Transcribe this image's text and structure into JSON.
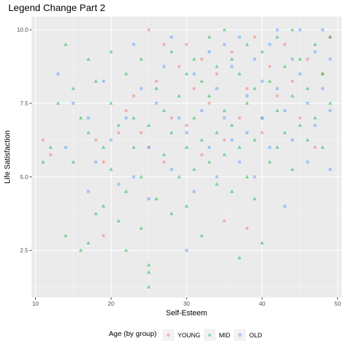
{
  "chart_data": {
    "type": "scatter",
    "title": "Legend Change Part 2",
    "xlabel": "Self-Esteem",
    "ylabel": "Life Satisfaction",
    "xlim": [
      9.5,
      50.5
    ],
    "ylim": [
      0.9,
      10.45
    ],
    "x_ticks": [
      10,
      20,
      30,
      40,
      50
    ],
    "y_ticks": [
      2.5,
      5.0,
      7.5,
      10.0
    ],
    "x_tick_labels": [
      "10",
      "20",
      "30",
      "40",
      "50"
    ],
    "y_tick_labels": [
      "2.5",
      "5.0",
      "7.5",
      "10.0"
    ],
    "grid": true,
    "legend": {
      "title": "Age (by group)",
      "position": "bottom",
      "entries": [
        "YOUNG",
        "MID",
        "OLD"
      ]
    },
    "series": [
      {
        "name": "YOUNG",
        "marker": "circle",
        "color": "#F8766D",
        "points": [
          [
            11,
            6.25
          ],
          [
            12,
            5.75
          ],
          [
            18,
            6.25
          ],
          [
            19,
            3.0
          ],
          [
            19,
            5.5
          ],
          [
            21,
            6.5
          ],
          [
            22,
            7.25
          ],
          [
            23,
            7.75
          ],
          [
            24,
            6.5
          ],
          [
            25,
            10.0
          ],
          [
            25,
            6.0
          ],
          [
            26,
            8.25
          ],
          [
            27,
            9.5
          ],
          [
            27,
            5.5
          ],
          [
            28,
            7.0
          ],
          [
            29,
            8.75
          ],
          [
            30,
            6.75
          ],
          [
            30,
            9.5
          ],
          [
            31,
            8.0
          ],
          [
            32,
            5.75
          ],
          [
            32,
            9.0
          ],
          [
            33,
            7.5
          ],
          [
            34,
            8.5
          ],
          [
            35,
            6.25
          ],
          [
            35,
            3.5
          ],
          [
            36,
            9.25
          ],
          [
            37,
            7.0
          ],
          [
            38,
            8.0
          ],
          [
            38,
            3.25
          ],
          [
            39,
            9.75
          ],
          [
            40,
            6.5
          ],
          [
            41,
            8.75
          ],
          [
            42,
            7.75
          ],
          [
            43,
            9.5
          ],
          [
            44,
            8.25
          ],
          [
            45,
            7.0
          ],
          [
            46,
            9.0
          ],
          [
            47,
            6.0
          ],
          [
            48,
            8.5
          ],
          [
            49,
            9.75
          ]
        ]
      },
      {
        "name": "MID",
        "marker": "triangle",
        "color": "#00BA38",
        "points": [
          [
            11,
            5.5
          ],
          [
            12,
            6.0
          ],
          [
            13,
            7.5
          ],
          [
            14,
            9.5
          ],
          [
            14,
            3.0
          ],
          [
            15,
            5.5
          ],
          [
            15,
            8.0
          ],
          [
            16,
            2.5
          ],
          [
            16,
            7.0
          ],
          [
            17,
            6.5
          ],
          [
            17,
            9.0
          ],
          [
            17,
            2.75
          ],
          [
            18,
            3.75
          ],
          [
            18,
            8.25
          ],
          [
            19,
            6.0
          ],
          [
            19,
            4.0
          ],
          [
            20,
            7.5
          ],
          [
            20,
            5.25
          ],
          [
            20,
            9.25
          ],
          [
            21,
            3.5
          ],
          [
            21,
            6.75
          ],
          [
            22,
            8.5
          ],
          [
            22,
            4.5
          ],
          [
            22,
            2.5
          ],
          [
            23,
            6.0
          ],
          [
            23,
            7.0
          ],
          [
            24,
            3.25
          ],
          [
            24,
            9.0
          ],
          [
            24,
            5.0
          ],
          [
            25,
            2.0
          ],
          [
            25,
            1.75
          ],
          [
            25,
            1.25
          ],
          [
            25,
            6.75
          ],
          [
            26,
            8.0
          ],
          [
            26,
            4.25
          ],
          [
            27,
            7.25
          ],
          [
            27,
            5.75
          ],
          [
            28,
            9.25
          ],
          [
            28,
            6.5
          ],
          [
            28,
            3.75
          ],
          [
            29,
            7.75
          ],
          [
            29,
            5.0
          ],
          [
            30,
            8.5
          ],
          [
            30,
            6.0
          ],
          [
            30,
            4.0
          ],
          [
            31,
            9.0
          ],
          [
            31,
            7.0
          ],
          [
            31,
            5.25
          ],
          [
            32,
            8.25
          ],
          [
            32,
            6.25
          ],
          [
            32,
            3.0
          ],
          [
            33,
            9.75
          ],
          [
            33,
            7.75
          ],
          [
            33,
            5.5
          ],
          [
            34,
            8.75
          ],
          [
            34,
            6.5
          ],
          [
            34,
            4.75
          ],
          [
            35,
            10.0
          ],
          [
            35,
            7.25
          ],
          [
            35,
            5.75
          ],
          [
            36,
            9.0
          ],
          [
            36,
            6.75
          ],
          [
            36,
            4.5
          ],
          [
            37,
            8.5
          ],
          [
            37,
            6.0
          ],
          [
            37,
            2.25
          ],
          [
            38,
            9.5
          ],
          [
            38,
            7.5
          ],
          [
            38,
            5.0
          ],
          [
            39,
            8.0
          ],
          [
            39,
            6.25
          ],
          [
            39,
            4.25
          ],
          [
            40,
            9.25
          ],
          [
            40,
            7.0
          ],
          [
            40,
            2.75
          ],
          [
            41,
            8.25
          ],
          [
            41,
            5.5
          ],
          [
            42,
            9.75
          ],
          [
            42,
            7.25
          ],
          [
            42,
            6.0
          ],
          [
            43,
            8.75
          ],
          [
            43,
            6.5
          ],
          [
            44,
            10.0
          ],
          [
            44,
            7.75
          ],
          [
            44,
            5.25
          ],
          [
            45,
            9.0
          ],
          [
            45,
            6.75
          ],
          [
            46,
            8.0
          ],
          [
            46,
            6.25
          ],
          [
            47,
            9.5
          ],
          [
            47,
            7.0
          ],
          [
            48,
            8.5
          ],
          [
            48,
            6.0
          ],
          [
            49,
            9.75
          ],
          [
            49,
            7.5
          ]
        ]
      },
      {
        "name": "OLD",
        "marker": "square",
        "color": "#619CFF",
        "points": [
          [
            13,
            8.5
          ],
          [
            14,
            6.0
          ],
          [
            15,
            7.5
          ],
          [
            17,
            7.0
          ],
          [
            17,
            4.5
          ],
          [
            18,
            5.5
          ],
          [
            19,
            8.25
          ],
          [
            20,
            6.25
          ],
          [
            21,
            4.75
          ],
          [
            22,
            7.0
          ],
          [
            23,
            5.0
          ],
          [
            23,
            9.5
          ],
          [
            24,
            8.0
          ],
          [
            25,
            6.0
          ],
          [
            25,
            4.25
          ],
          [
            26,
            7.5
          ],
          [
            27,
            8.75
          ],
          [
            28,
            5.25
          ],
          [
            28,
            9.75
          ],
          [
            29,
            7.0
          ],
          [
            30,
            2.5
          ],
          [
            30,
            6.5
          ],
          [
            31,
            8.5
          ],
          [
            31,
            4.5
          ],
          [
            32,
            7.25
          ],
          [
            33,
            9.25
          ],
          [
            33,
            6.0
          ],
          [
            34,
            8.0
          ],
          [
            34,
            5.0
          ],
          [
            35,
            9.5
          ],
          [
            35,
            7.0
          ],
          [
            36,
            6.25
          ],
          [
            36,
            8.75
          ],
          [
            37,
            9.75
          ],
          [
            37,
            5.5
          ],
          [
            38,
            7.75
          ],
          [
            38,
            6.5
          ],
          [
            39,
            9.0
          ],
          [
            39,
            5.0
          ],
          [
            40,
            8.25
          ],
          [
            40,
            7.0
          ],
          [
            41,
            9.5
          ],
          [
            41,
            6.0
          ],
          [
            42,
            8.0
          ],
          [
            42,
            10.0
          ],
          [
            43,
            7.25
          ],
          [
            43,
            4.0
          ],
          [
            44,
            9.0
          ],
          [
            44,
            6.25
          ],
          [
            45,
            8.5
          ],
          [
            45,
            10.0
          ],
          [
            46,
            7.5
          ],
          [
            46,
            5.5
          ],
          [
            47,
            9.25
          ],
          [
            47,
            6.75
          ],
          [
            48,
            8.0
          ],
          [
            48,
            10.0
          ],
          [
            49,
            9.0
          ],
          [
            49,
            7.25
          ],
          [
            49,
            5.25
          ]
        ]
      }
    ]
  }
}
